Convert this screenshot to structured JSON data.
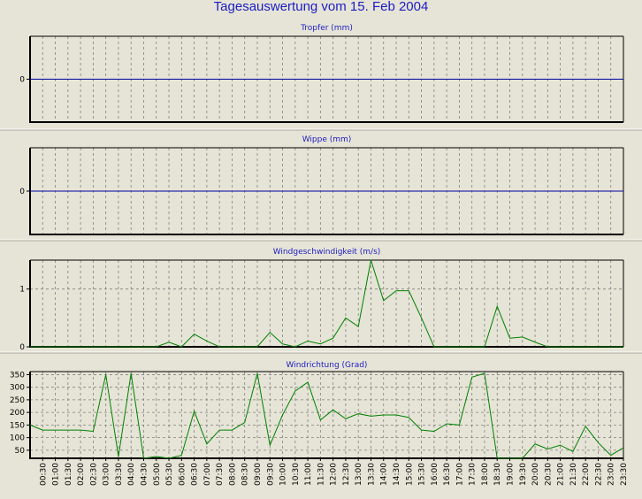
{
  "title": "Tagesauswertung vom 15. Feb 2004",
  "colors": {
    "background": "#e6e4d6",
    "title": "#1c1cc4",
    "zero_line": "#0000a0",
    "series_line": "#008000",
    "grid": "#808080",
    "axis": "#000000"
  },
  "time_labels": [
    "00:30",
    "01:00",
    "01:30",
    "02:00",
    "02:30",
    "03:00",
    "03:30",
    "04:00",
    "04:30",
    "05:00",
    "05:30",
    "06:00",
    "06:30",
    "07:00",
    "07:30",
    "08:00",
    "08:30",
    "09:00",
    "09:30",
    "10:00",
    "10:30",
    "11:00",
    "11:30",
    "12:00",
    "12:30",
    "13:00",
    "13:30",
    "14:00",
    "14:30",
    "15:00",
    "15:30",
    "16:00",
    "16:30",
    "17:00",
    "17:30",
    "18:00",
    "18:30",
    "19:00",
    "19:30",
    "20:00",
    "20:30",
    "21:00",
    "21:30",
    "22:00",
    "22:30",
    "23:00",
    "23:30"
  ],
  "chart_data": [
    {
      "type": "line",
      "title": "Tropfer (mm)",
      "yticks": [
        0
      ],
      "ylim": [
        -1,
        1
      ],
      "grid": true,
      "series": [
        {
          "values": [
            0,
            0,
            0,
            0,
            0,
            0,
            0,
            0,
            0,
            0,
            0,
            0,
            0,
            0,
            0,
            0,
            0,
            0,
            0,
            0,
            0,
            0,
            0,
            0,
            0,
            0,
            0,
            0,
            0,
            0,
            0,
            0,
            0,
            0,
            0,
            0,
            0,
            0,
            0,
            0,
            0,
            0,
            0,
            0,
            0,
            0,
            0,
            0
          ]
        }
      ]
    },
    {
      "type": "line",
      "title": "Wippe (mm)",
      "yticks": [
        0
      ],
      "ylim": [
        -1,
        1
      ],
      "grid": true,
      "series": [
        {
          "values": [
            0,
            0,
            0,
            0,
            0,
            0,
            0,
            0,
            0,
            0,
            0,
            0,
            0,
            0,
            0,
            0,
            0,
            0,
            0,
            0,
            0,
            0,
            0,
            0,
            0,
            0,
            0,
            0,
            0,
            0,
            0,
            0,
            0,
            0,
            0,
            0,
            0,
            0,
            0,
            0,
            0,
            0,
            0,
            0,
            0,
            0,
            0,
            0
          ]
        }
      ]
    },
    {
      "type": "line",
      "title": "Windgeschwindigkeit (m/s)",
      "yticks": [
        0,
        1
      ],
      "ylim": [
        0,
        1.5
      ],
      "grid": true,
      "series": [
        {
          "values": [
            0,
            0,
            0,
            0,
            0,
            0,
            0,
            0,
            0,
            0,
            0,
            0.08,
            0,
            0.22,
            0.1,
            0,
            0,
            0,
            0,
            0.25,
            0.05,
            0,
            0.1,
            0.05,
            0.15,
            0.5,
            0.35,
            1.5,
            0.8,
            0.97,
            0.97,
            0.5,
            0,
            0,
            0,
            0,
            0,
            0.7,
            0.15,
            0.17,
            0.08,
            0,
            0,
            0,
            0,
            0,
            0,
            0
          ]
        }
      ]
    },
    {
      "type": "line",
      "title": "Windrichtung (Grad)",
      "yticks": [
        50,
        100,
        150,
        200,
        250,
        300,
        350
      ],
      "ylim": [
        18,
        362
      ],
      "grid": true,
      "series": [
        {
          "values": [
            150,
            130,
            130,
            130,
            130,
            125,
            350,
            25,
            355,
            10,
            25,
            15,
            30,
            205,
            75,
            130,
            130,
            160,
            355,
            70,
            190,
            285,
            320,
            170,
            210,
            175,
            195,
            185,
            190,
            190,
            180,
            130,
            125,
            155,
            150,
            340,
            355,
            5,
            5,
            5,
            75,
            55,
            70,
            45,
            145,
            80,
            30,
            60
          ]
        }
      ]
    }
  ]
}
